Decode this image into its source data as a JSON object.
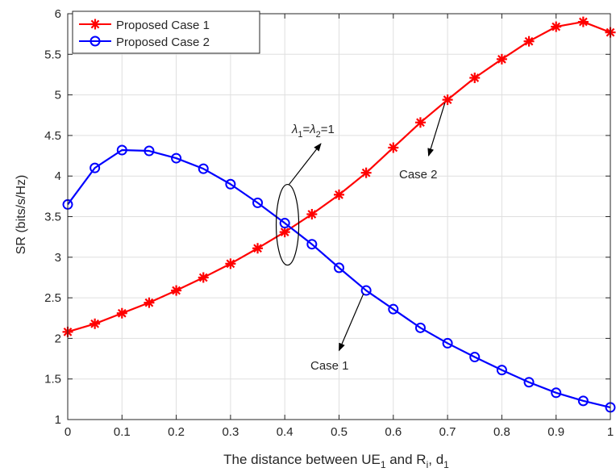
{
  "chart_data": {
    "type": "line",
    "xlabel": "The distance between UE",
    "xlabel_sub1": "1",
    "xlabel_mid": " and R",
    "xlabel_sub2": "i",
    "xlabel_end": ", d",
    "xlabel_sub3": "1",
    "ylabel": "SR (bits/s/Hz)",
    "xlim": [
      0,
      1
    ],
    "ylim": [
      1,
      6
    ],
    "xticks": [
      "0",
      "0.1",
      "0.2",
      "0.3",
      "0.4",
      "0.5",
      "0.6",
      "0.7",
      "0.8",
      "0.9",
      "1"
    ],
    "yticks": [
      "1",
      "1.5",
      "2",
      "2.5",
      "3",
      "3.5",
      "4",
      "4.5",
      "5",
      "5.5",
      "6"
    ],
    "grid": true,
    "legend_placement": "top-left",
    "x": [
      0,
      0.05,
      0.1,
      0.15,
      0.2,
      0.25,
      0.3,
      0.35,
      0.4,
      0.45,
      0.5,
      0.55,
      0.6,
      0.65,
      0.7,
      0.75,
      0.8,
      0.85,
      0.9,
      0.95,
      1.0
    ],
    "series": [
      {
        "name": "Proposed Case 1",
        "color": "#ff0000",
        "marker": "asterisk",
        "values": [
          2.08,
          2.18,
          2.31,
          2.44,
          2.59,
          2.75,
          2.92,
          3.11,
          3.31,
          3.53,
          3.77,
          4.04,
          4.35,
          4.66,
          4.94,
          5.21,
          5.44,
          5.66,
          5.84,
          5.9,
          5.77
        ]
      },
      {
        "name": "Proposed Case 2",
        "color": "#0000ff",
        "marker": "circle",
        "values": [
          3.65,
          4.1,
          4.32,
          4.31,
          4.22,
          4.09,
          3.9,
          3.67,
          3.42,
          3.16,
          2.87,
          2.59,
          2.36,
          2.13,
          1.94,
          1.77,
          1.61,
          1.46,
          1.33,
          1.23,
          1.15
        ]
      }
    ],
    "annotations": {
      "lambda": {
        "sym1": "λ",
        "sub1": "1",
        "eq1": "=",
        "sym2": "λ",
        "sub2": "2",
        "eq2": "=1",
        "ellipse_center": [
          0.405,
          3.4
        ]
      },
      "case1": {
        "text": "Case 1",
        "arrow_from": [
          0.545,
          2.55
        ],
        "arrow_to": [
          0.5,
          1.85
        ]
      },
      "case2": {
        "text": "Case 2",
        "arrow_from": [
          0.695,
          4.9
        ],
        "arrow_to": [
          0.665,
          4.25
        ]
      }
    }
  }
}
